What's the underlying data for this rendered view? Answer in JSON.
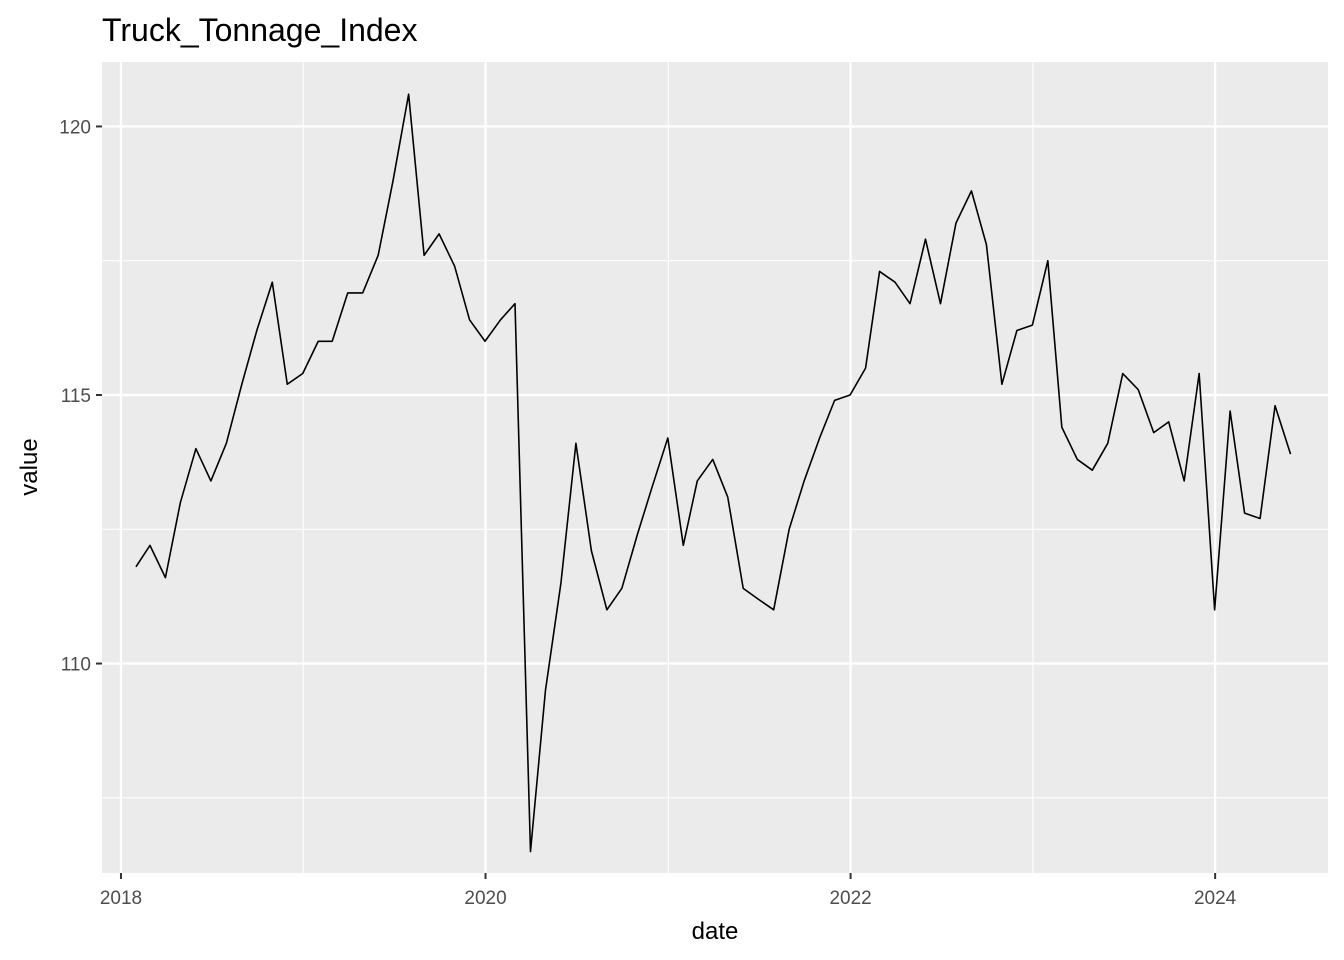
{
  "chart_data": {
    "type": "line",
    "title": "Truck_Tonnage_Index",
    "xlabel": "date",
    "ylabel": "value",
    "x_ticks": [
      "2018",
      "2020",
      "2022",
      "2024"
    ],
    "y_ticks": [
      "110",
      "115",
      "120"
    ],
    "xlim": [
      "2017-11-24",
      "2024-08-14"
    ],
    "ylim": [
      106.1,
      121.2
    ],
    "grid": true,
    "colors": {
      "panel": "#ebebeb",
      "grid": "#ffffff",
      "line": "#000000",
      "tick_text": "#4d4d4d"
    },
    "series": [
      {
        "x": [
          "2018-01-31",
          "2018-02-28",
          "2018-03-31",
          "2018-04-30",
          "2018-05-31",
          "2018-06-30",
          "2018-07-31",
          "2018-08-31",
          "2018-09-30",
          "2018-10-31",
          "2018-11-30",
          "2018-12-31",
          "2019-01-31",
          "2019-02-28",
          "2019-03-31",
          "2019-04-30",
          "2019-05-31",
          "2019-06-30",
          "2019-07-31",
          "2019-08-31",
          "2019-09-30",
          "2019-10-31",
          "2019-11-30",
          "2019-12-31",
          "2020-01-31",
          "2020-02-29",
          "2020-03-31",
          "2020-04-30",
          "2020-05-31",
          "2020-06-30",
          "2020-07-31",
          "2020-08-31",
          "2020-09-30",
          "2020-10-31",
          "2020-11-30",
          "2020-12-31",
          "2021-01-31",
          "2021-02-28",
          "2021-03-31",
          "2021-04-30",
          "2021-05-31",
          "2021-06-30",
          "2021-07-31",
          "2021-08-31",
          "2021-09-30",
          "2021-10-31",
          "2021-11-30",
          "2021-12-31",
          "2022-01-31",
          "2022-02-28",
          "2022-03-31",
          "2022-04-30",
          "2022-05-31",
          "2022-06-30",
          "2022-07-31",
          "2022-08-31",
          "2022-09-30",
          "2022-10-31",
          "2022-11-30",
          "2022-12-31",
          "2023-01-31",
          "2023-02-28",
          "2023-03-31",
          "2023-04-30",
          "2023-05-31",
          "2023-06-30",
          "2023-07-31",
          "2023-08-31",
          "2023-09-30",
          "2023-10-31",
          "2023-11-30",
          "2023-12-31",
          "2024-01-31",
          "2024-02-29",
          "2024-03-31",
          "2024-04-30",
          "2024-05-31"
        ],
        "values": [
          111.8,
          112.2,
          111.6,
          113.0,
          114.0,
          113.4,
          114.1,
          115.2,
          116.2,
          117.1,
          115.2,
          115.4,
          116.0,
          116.0,
          116.9,
          116.9,
          117.6,
          119.0,
          120.6,
          117.6,
          118.0,
          117.4,
          116.4,
          116.0,
          116.4,
          116.7,
          106.5,
          109.5,
          111.5,
          114.1,
          112.1,
          111.0,
          111.4,
          112.4,
          113.3,
          114.2,
          112.2,
          113.4,
          113.8,
          113.1,
          111.4,
          111.2,
          111.0,
          112.5,
          113.4,
          114.2,
          114.9,
          115.0,
          115.5,
          117.3,
          117.1,
          116.7,
          117.9,
          116.7,
          118.2,
          118.8,
          117.8,
          115.2,
          116.2,
          116.3,
          117.5,
          114.4,
          113.8,
          113.6,
          114.1,
          115.4,
          115.1,
          114.3,
          114.5,
          113.4,
          115.4,
          111.0,
          114.7,
          112.8,
          112.7,
          114.8,
          113.9
        ]
      }
    ]
  }
}
